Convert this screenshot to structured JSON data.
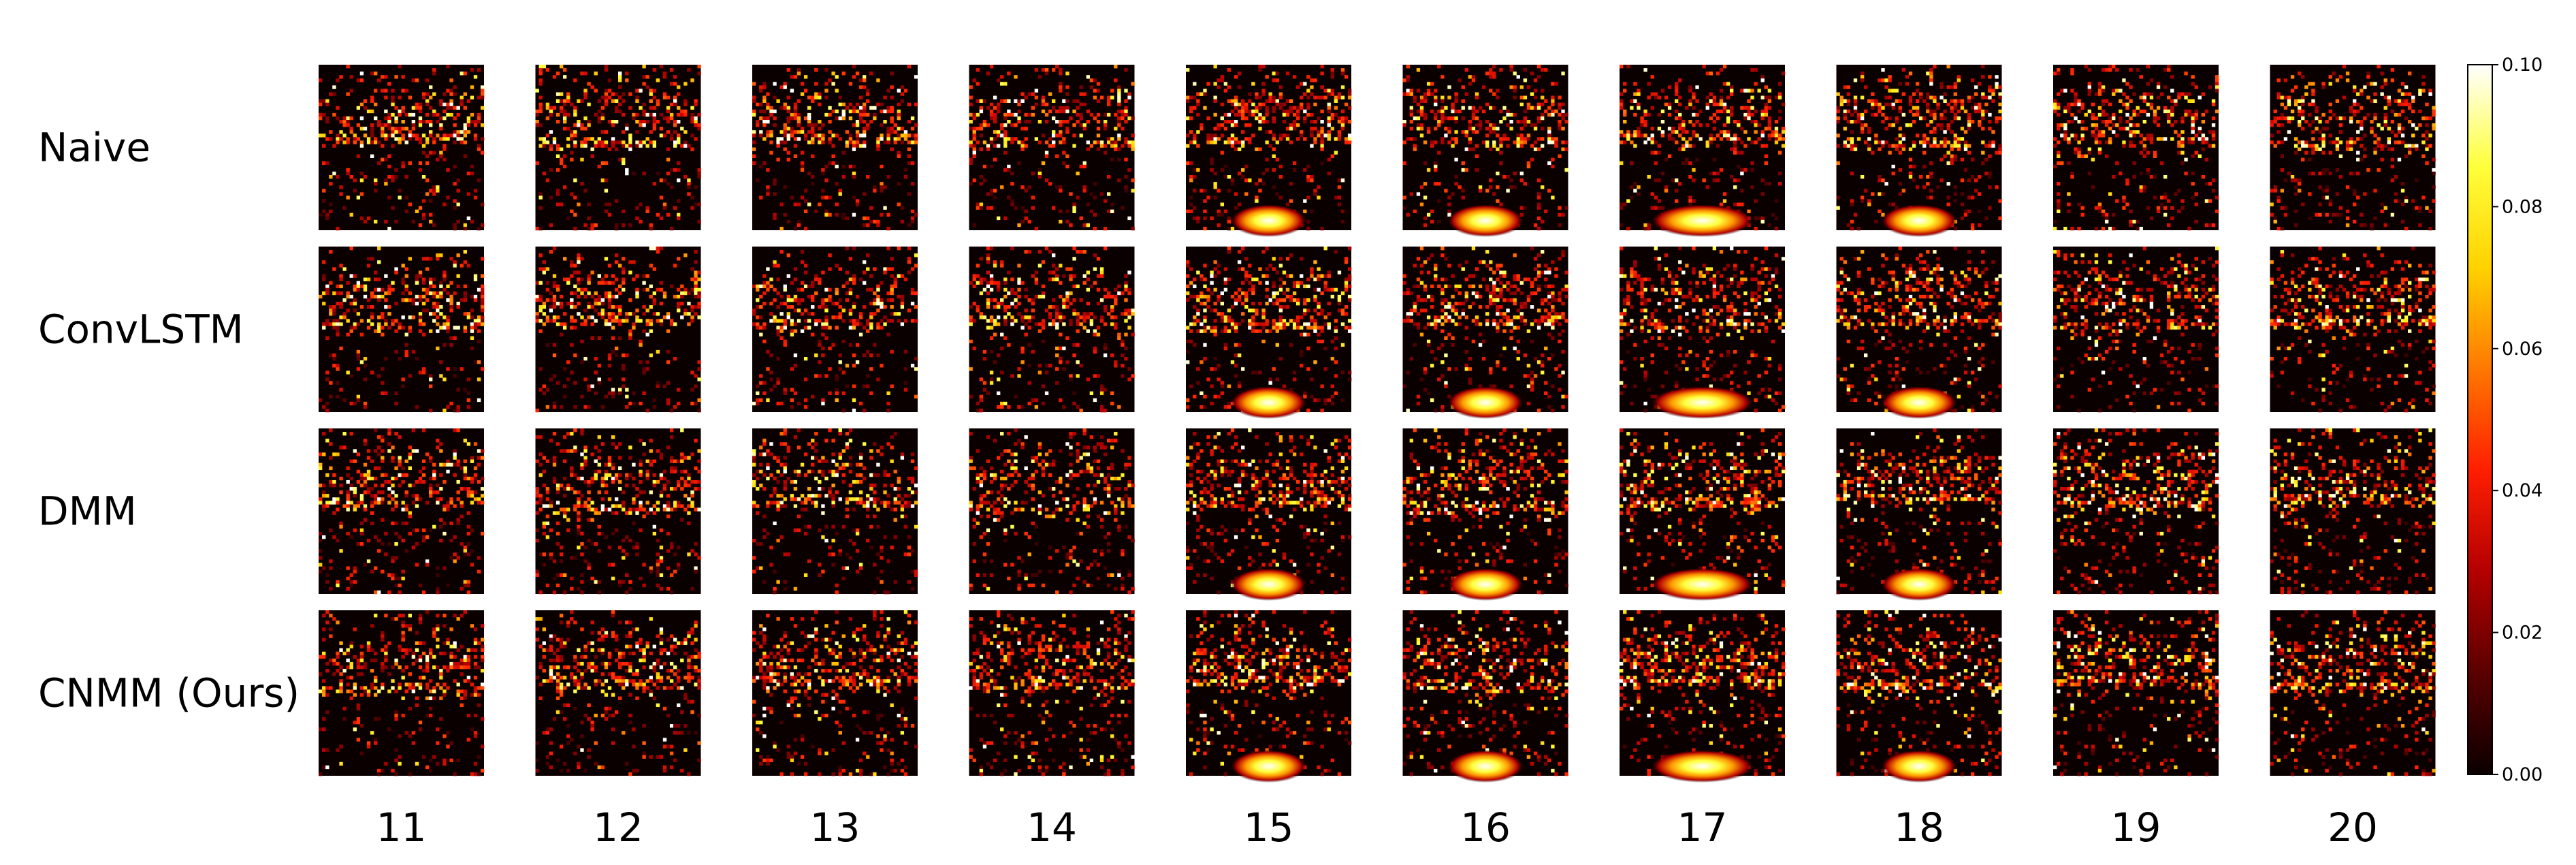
{
  "chart_data": {
    "type": "heatmap",
    "title": "",
    "rows": [
      "Naive",
      "ConvLSTM",
      "DMM",
      "CNMM (Ours)"
    ],
    "columns": [
      "11",
      "12",
      "13",
      "14",
      "15",
      "16",
      "17",
      "18",
      "19",
      "20"
    ],
    "colorbar": {
      "colormap": "hot",
      "min": 0.0,
      "max": 0.1,
      "ticks": [
        "0.00",
        "0.02",
        "0.04",
        "0.06",
        "0.08",
        "0.10"
      ],
      "stops": [
        "#0b0000",
        "#5a0000",
        "#b40000",
        "#ff1e00",
        "#ff7800",
        "#ffd200",
        "#ffff3c",
        "#ffffff"
      ]
    },
    "panel_features": {
      "bottom_glow_columns": [
        "15",
        "16",
        "17",
        "18"
      ],
      "bottom_glow_rows": [
        "Naive",
        "ConvLSTM",
        "DMM",
        "CNMM (Ours)"
      ],
      "latitude_band": "equatorial streak across each panel"
    }
  }
}
